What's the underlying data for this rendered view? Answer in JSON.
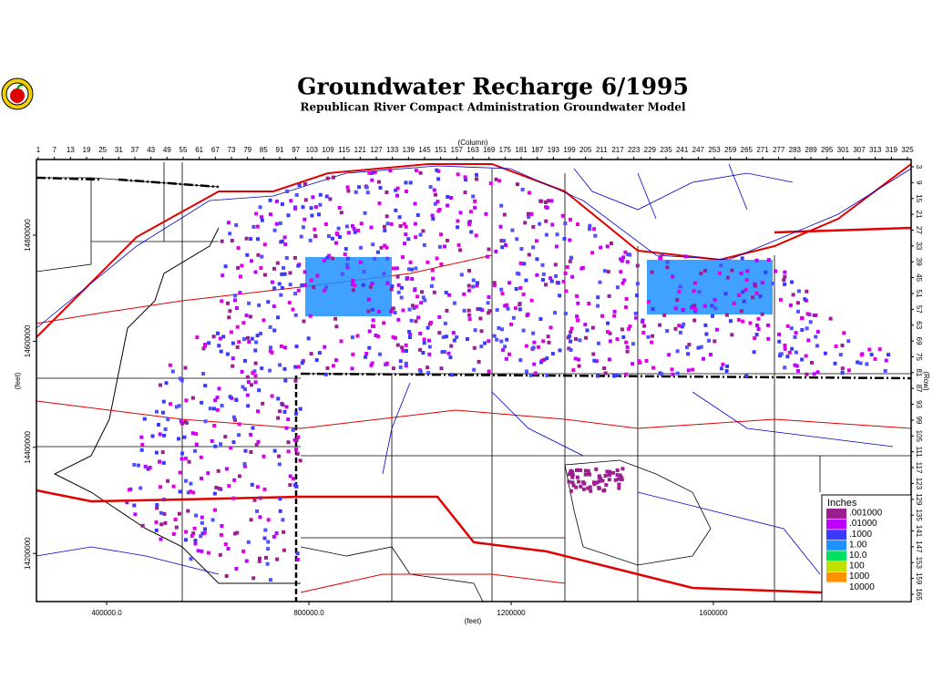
{
  "header": {
    "title": "Groundwater Recharge 6/1995",
    "subtitle": "Republican River Compact Administration Groundwater Model"
  },
  "column_axis": {
    "label": "(Column)",
    "ticks": [
      1,
      7,
      13,
      19,
      25,
      31,
      37,
      43,
      49,
      55,
      61,
      67,
      73,
      79,
      85,
      91,
      97,
      103,
      109,
      115,
      121,
      127,
      133,
      139,
      145,
      151,
      157,
      163,
      169,
      175,
      181,
      187,
      193,
      199,
      205,
      211,
      217,
      223,
      229,
      235,
      241,
      247,
      253,
      259,
      265,
      271,
      277,
      283,
      289,
      295,
      301,
      307,
      313,
      319,
      325
    ]
  },
  "row_axis": {
    "label": "(Row)",
    "ticks": [
      3,
      9,
      15,
      21,
      27,
      33,
      39,
      45,
      51,
      57,
      63,
      69,
      75,
      81,
      87,
      93,
      99,
      105,
      111,
      117,
      123,
      129,
      135,
      141,
      147,
      153,
      159,
      165
    ]
  },
  "x_axis": {
    "label": "(feet)",
    "ticks": [
      {
        "value": 400000,
        "label": "400000.0"
      },
      {
        "value": 800000,
        "label": "800000.0"
      },
      1200000,
      1600000
    ]
  },
  "y_axis": {
    "label": "(feet)",
    "ticks": [
      14800000,
      14600000,
      14400000,
      14200000
    ]
  },
  "legend": {
    "title": "Inches",
    "items": [
      {
        "label": ".001000",
        "color": "#9b1f8f"
      },
      {
        "label": ".01000",
        "color": "#c000ff"
      },
      {
        "label": ".1000",
        "color": "#3a3aff"
      },
      {
        "label": "1.00",
        "color": "#1e90ff"
      },
      {
        "label": "10.0",
        "color": "#00e060"
      },
      {
        "label": "100",
        "color": "#c0e000"
      },
      {
        "label": "1000",
        "color": "#ff9000"
      },
      {
        "label": "10000",
        "color": "#ffffff"
      }
    ]
  }
}
